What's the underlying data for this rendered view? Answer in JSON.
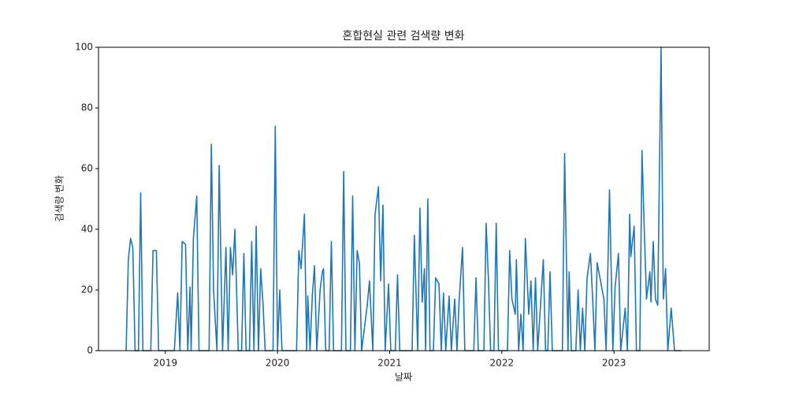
{
  "chart_data": {
    "type": "line",
    "title": "혼합현실 관련 검색량 변화",
    "x_label": "날짜",
    "y_label": "검색량 변화",
    "color": "#1f77b4",
    "xlim": [
      2018.404,
      2023.849
    ],
    "xticks": [
      2019,
      2020,
      2021,
      2022,
      2023
    ],
    "ylim": [
      0,
      100
    ],
    "yticks": [
      0,
      20,
      40,
      60,
      80,
      100
    ],
    "grid": false,
    "x": [
      2018.65,
      2018.67,
      2018.69,
      2018.71,
      2018.73,
      2018.76,
      2018.78,
      2018.8,
      2018.87,
      2018.89,
      2018.92,
      2018.94,
      2019.08,
      2019.11,
      2019.13,
      2019.15,
      2019.18,
      2019.2,
      2019.22,
      2019.23,
      2019.25,
      2019.28,
      2019.3,
      2019.39,
      2019.41,
      2019.43,
      2019.46,
      2019.48,
      2019.51,
      2019.54,
      2019.56,
      2019.58,
      2019.6,
      2019.62,
      2019.65,
      2019.68,
      2019.7,
      2019.72,
      2019.75,
      2019.77,
      2019.79,
      2019.81,
      2019.83,
      2019.85,
      2019.87,
      2019.89,
      2019.96,
      2019.98,
      2020.0,
      2020.02,
      2020.04,
      2020.17,
      2020.19,
      2020.21,
      2020.24,
      2020.26,
      2020.27,
      2020.29,
      2020.31,
      2020.33,
      2020.35,
      2020.38,
      2020.4,
      2020.41,
      2020.43,
      2020.46,
      2020.48,
      2020.5,
      2020.57,
      2020.59,
      2020.61,
      2020.65,
      2020.67,
      2020.69,
      2020.71,
      2020.73,
      2020.75,
      2020.8,
      2020.82,
      2020.85,
      2020.87,
      2020.9,
      2020.92,
      2020.94,
      2020.96,
      2020.99,
      2021.01,
      2021.05,
      2021.07,
      2021.09,
      2021.2,
      2021.22,
      2021.25,
      2021.27,
      2021.29,
      2021.31,
      2021.32,
      2021.34,
      2021.36,
      2021.39,
      2021.41,
      2021.44,
      2021.46,
      2021.48,
      2021.5,
      2021.53,
      2021.55,
      2021.58,
      2021.6,
      2021.62,
      2021.65,
      2021.67,
      2021.75,
      2021.77,
      2021.79,
      2021.84,
      2021.86,
      2021.88,
      2021.9,
      2021.93,
      2021.95,
      2021.97,
      2022.05,
      2022.07,
      2022.09,
      2022.12,
      2022.13,
      2022.15,
      2022.17,
      2022.19,
      2022.21,
      2022.24,
      2022.26,
      2022.28,
      2022.3,
      2022.32,
      2022.37,
      2022.39,
      2022.41,
      2022.43,
      2022.45,
      2022.54,
      2022.56,
      2022.59,
      2022.6,
      2022.62,
      2022.66,
      2022.68,
      2022.7,
      2022.72,
      2022.74,
      2022.76,
      2022.79,
      2022.81,
      2022.83,
      2022.85,
      2022.88,
      2022.91,
      2022.93,
      2022.96,
      2022.99,
      2023.01,
      2023.04,
      2023.06,
      2023.1,
      2023.12,
      2023.14,
      2023.15,
      2023.18,
      2023.2,
      2023.23,
      2023.25,
      2023.27,
      2023.29,
      2023.32,
      2023.33,
      2023.35,
      2023.37,
      2023.39,
      2023.42,
      2023.44,
      2023.46,
      2023.48,
      2023.51,
      2023.54,
      2023.6
    ],
    "values": [
      0,
      30,
      37,
      34,
      0,
      0,
      52,
      0,
      0,
      33,
      33,
      0,
      0,
      19,
      0,
      36,
      35,
      0,
      21,
      0,
      37,
      51,
      0,
      0,
      68,
      20,
      0,
      61,
      0,
      34,
      0,
      34,
      25,
      40,
      0,
      0,
      32,
      0,
      0,
      36,
      0,
      41,
      0,
      27,
      16,
      0,
      0,
      74,
      0,
      20,
      0,
      0,
      33,
      27,
      45,
      0,
      18,
      0,
      18,
      28,
      0,
      20,
      26,
      27,
      0,
      0,
      36,
      0,
      0,
      59,
      0,
      0,
      51,
      0,
      33,
      29,
      0,
      15,
      23,
      0,
      45,
      54,
      23,
      48,
      0,
      22,
      0,
      0,
      25,
      0,
      0,
      38,
      0,
      47,
      16,
      27,
      0,
      50,
      0,
      0,
      24,
      22,
      0,
      19,
      0,
      18,
      0,
      17,
      0,
      17,
      34,
      0,
      0,
      24,
      0,
      0,
      42,
      24,
      0,
      0,
      42,
      0,
      0,
      33,
      17,
      12,
      30,
      0,
      12,
      0,
      37,
      12,
      23,
      0,
      24,
      0,
      30,
      0,
      0,
      26,
      0,
      0,
      65,
      0,
      26,
      0,
      0,
      20,
      0,
      14,
      0,
      24,
      32,
      17,
      0,
      29,
      23,
      17,
      0,
      53,
      0,
      21,
      32,
      0,
      14,
      0,
      45,
      31,
      41,
      0,
      0,
      66,
      40,
      17,
      26,
      16,
      36,
      17,
      15,
      100,
      17,
      27,
      0,
      14,
      0,
      0
    ]
  }
}
